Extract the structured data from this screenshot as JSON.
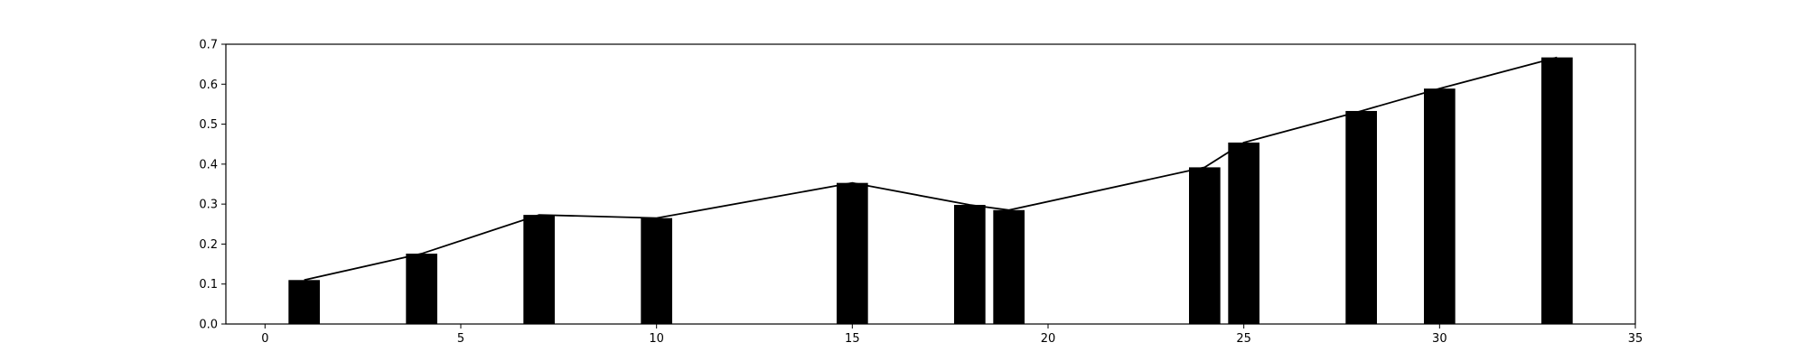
{
  "chart_data": {
    "type": "bar",
    "bar_width": 0.8,
    "x": [
      1,
      4,
      7,
      10,
      15,
      18,
      19,
      24,
      25,
      28,
      30,
      33
    ],
    "values": [
      0.11,
      0.176,
      0.273,
      0.265,
      0.353,
      0.298,
      0.285,
      0.392,
      0.454,
      0.533,
      0.589,
      0.667
    ],
    "overlay_line": {
      "type": "line",
      "values": [
        0.11,
        0.176,
        0.273,
        0.265,
        0.353,
        0.298,
        0.285,
        0.392,
        0.454,
        0.533,
        0.589,
        0.667
      ]
    },
    "xlim": [
      -1,
      35
    ],
    "ylim": [
      0.0,
      0.7
    ],
    "x_ticks": [
      0,
      5,
      10,
      15,
      20,
      25,
      30,
      35
    ],
    "y_ticks": [
      0.0,
      0.1,
      0.2,
      0.3,
      0.4,
      0.5,
      0.6,
      0.7
    ],
    "x_tick_labels": [
      "0",
      "5",
      "10",
      "15",
      "20",
      "25",
      "30",
      "35"
    ],
    "y_tick_labels": [
      "0.0",
      "0.1",
      "0.2",
      "0.3",
      "0.4",
      "0.5",
      "0.6",
      "0.7"
    ],
    "title": "",
    "xlabel": "",
    "ylabel": "",
    "grid": false,
    "bar_color": "#000000",
    "line_color": "#000000"
  }
}
